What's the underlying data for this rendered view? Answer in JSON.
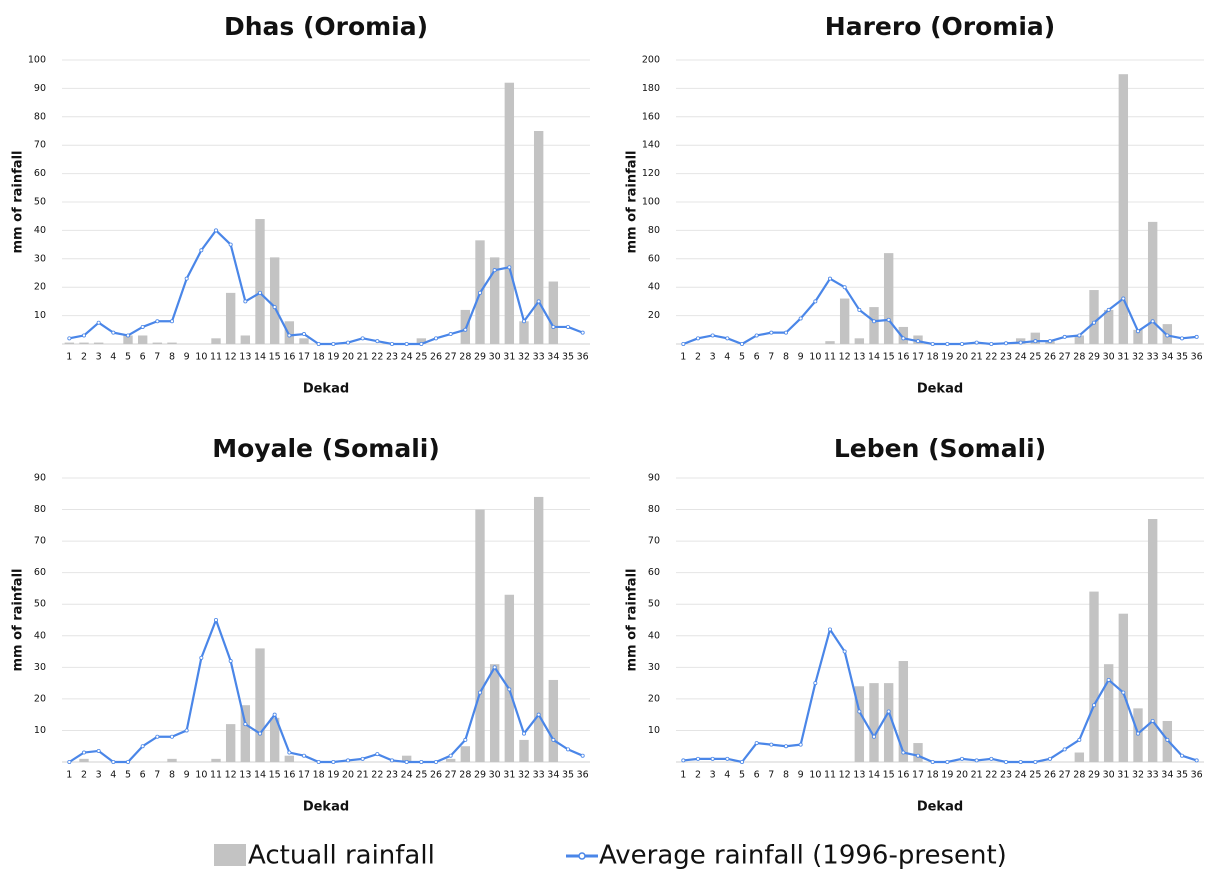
{
  "chart_data": [
    {
      "type": "bar-line",
      "title": "Dhas (Oromia)",
      "x_label": "Dekad",
      "y_label": "mm of rainfall",
      "categories": [
        1,
        2,
        3,
        4,
        5,
        6,
        7,
        8,
        9,
        10,
        11,
        12,
        13,
        14,
        15,
        16,
        17,
        18,
        19,
        20,
        21,
        22,
        23,
        24,
        25,
        26,
        27,
        28,
        29,
        30,
        31,
        32,
        33,
        34,
        35,
        36
      ],
      "ylim": [
        0,
        100
      ],
      "yticks": [
        10,
        20,
        30,
        40,
        50,
        60,
        70,
        80,
        90,
        100
      ],
      "grid": true,
      "series": [
        {
          "type": "bar",
          "values": [
            0.5,
            0.5,
            0.5,
            0,
            3,
            3,
            0.5,
            0.5,
            0,
            0,
            2,
            18,
            3,
            44,
            30.5,
            8,
            2,
            0,
            0,
            0,
            0,
            0,
            0,
            0,
            2,
            0,
            0,
            12,
            36.5,
            30.5,
            92,
            8,
            75,
            22,
            0,
            0
          ]
        },
        {
          "type": "line",
          "values": [
            2,
            3,
            7.5,
            4,
            3,
            6,
            8,
            8,
            23,
            33,
            40,
            35,
            15,
            18,
            13,
            3,
            3.5,
            0,
            0,
            0.5,
            2,
            1,
            0,
            0,
            0,
            2,
            3.5,
            5,
            18,
            26,
            27,
            8,
            15,
            6,
            6,
            4
          ]
        }
      ]
    },
    {
      "type": "bar-line",
      "title": "Harero (Oromia)",
      "x_label": "Dekad",
      "y_label": "mm of rainfall",
      "categories": [
        1,
        2,
        3,
        4,
        5,
        6,
        7,
        8,
        9,
        10,
        11,
        12,
        13,
        14,
        15,
        16,
        17,
        18,
        19,
        20,
        21,
        22,
        23,
        24,
        25,
        26,
        27,
        28,
        29,
        30,
        31,
        32,
        33,
        34,
        35,
        36
      ],
      "ylim": [
        0,
        200
      ],
      "yticks": [
        20,
        40,
        60,
        80,
        100,
        120,
        140,
        160,
        180,
        200
      ],
      "grid": true,
      "series": [
        {
          "type": "bar",
          "values": [
            0,
            0,
            0,
            0,
            0,
            0,
            0,
            0,
            0,
            0,
            2,
            32,
            4,
            26,
            64,
            12,
            6,
            0,
            0,
            0,
            0,
            0,
            0,
            4,
            8,
            2,
            0,
            6,
            38,
            24,
            190,
            10,
            86,
            14,
            0,
            0
          ]
        },
        {
          "type": "line",
          "values": [
            0,
            4,
            6,
            4,
            0,
            6,
            8,
            8,
            18,
            30,
            46,
            40,
            24,
            16,
            17,
            4,
            2,
            0,
            0,
            0,
            1,
            0,
            0.5,
            1,
            2,
            2,
            5,
            6,
            15,
            24,
            32,
            9,
            16,
            6,
            4,
            5
          ]
        }
      ]
    },
    {
      "type": "bar-line",
      "title": "Moyale (Somali)",
      "x_label": "Dekad",
      "y_label": "mm of rainfall",
      "categories": [
        1,
        2,
        3,
        4,
        5,
        6,
        7,
        8,
        9,
        10,
        11,
        12,
        13,
        14,
        15,
        16,
        17,
        18,
        19,
        20,
        21,
        22,
        23,
        24,
        25,
        26,
        27,
        28,
        29,
        30,
        31,
        32,
        33,
        34,
        35,
        36
      ],
      "ylim": [
        0,
        90
      ],
      "yticks": [
        10,
        20,
        30,
        40,
        50,
        60,
        70,
        80,
        90
      ],
      "grid": true,
      "series": [
        {
          "type": "bar",
          "values": [
            0,
            1,
            0,
            0,
            0,
            0,
            0,
            1,
            0,
            0,
            1,
            12,
            18,
            36,
            14,
            2,
            0,
            0,
            0,
            0,
            0,
            0,
            0,
            2,
            0,
            0,
            1,
            5,
            80,
            31,
            53,
            7,
            84,
            26,
            0,
            0
          ]
        },
        {
          "type": "line",
          "values": [
            0,
            3,
            3.5,
            0,
            0,
            5,
            8,
            8,
            10,
            33,
            45,
            32,
            12,
            9,
            15,
            3,
            2,
            0,
            0,
            0.5,
            1,
            2.5,
            0.5,
            0,
            0,
            0,
            2,
            7,
            22,
            30,
            23,
            9,
            15,
            7,
            4,
            2
          ]
        }
      ]
    },
    {
      "type": "bar-line",
      "title": "Leben (Somali)",
      "x_label": "Dekad",
      "y_label": "mm of rainfall",
      "categories": [
        1,
        2,
        3,
        4,
        5,
        6,
        7,
        8,
        9,
        10,
        11,
        12,
        13,
        14,
        15,
        16,
        17,
        18,
        19,
        20,
        21,
        22,
        23,
        24,
        25,
        26,
        27,
        28,
        29,
        30,
        31,
        32,
        33,
        34,
        35,
        36
      ],
      "ylim": [
        0,
        90
      ],
      "yticks": [
        10,
        20,
        30,
        40,
        50,
        60,
        70,
        80,
        90
      ],
      "grid": true,
      "series": [
        {
          "type": "bar",
          "values": [
            0,
            0,
            0,
            0,
            0,
            0,
            0,
            0,
            0,
            0,
            0,
            0,
            24,
            25,
            25,
            32,
            6,
            0,
            0,
            0,
            0,
            0,
            0,
            0,
            0,
            0,
            0,
            3,
            54,
            31,
            47,
            17,
            77,
            13,
            0,
            0
          ]
        },
        {
          "type": "line",
          "values": [
            0.5,
            1,
            1,
            1,
            0,
            6,
            5.5,
            5,
            5.5,
            25,
            42,
            35,
            16,
            8,
            16,
            3,
            2,
            0,
            0,
            1,
            0.5,
            1,
            0,
            0,
            0,
            1,
            4,
            7,
            18,
            26,
            22,
            9,
            13,
            7,
            2,
            0.5
          ]
        }
      ]
    }
  ],
  "legend": {
    "items": [
      {
        "label": "Actuall rainfall",
        "color": "#c3c3c3"
      },
      {
        "label": "Average rainfall (1996-present)",
        "color": "#4a86e8"
      }
    ]
  }
}
